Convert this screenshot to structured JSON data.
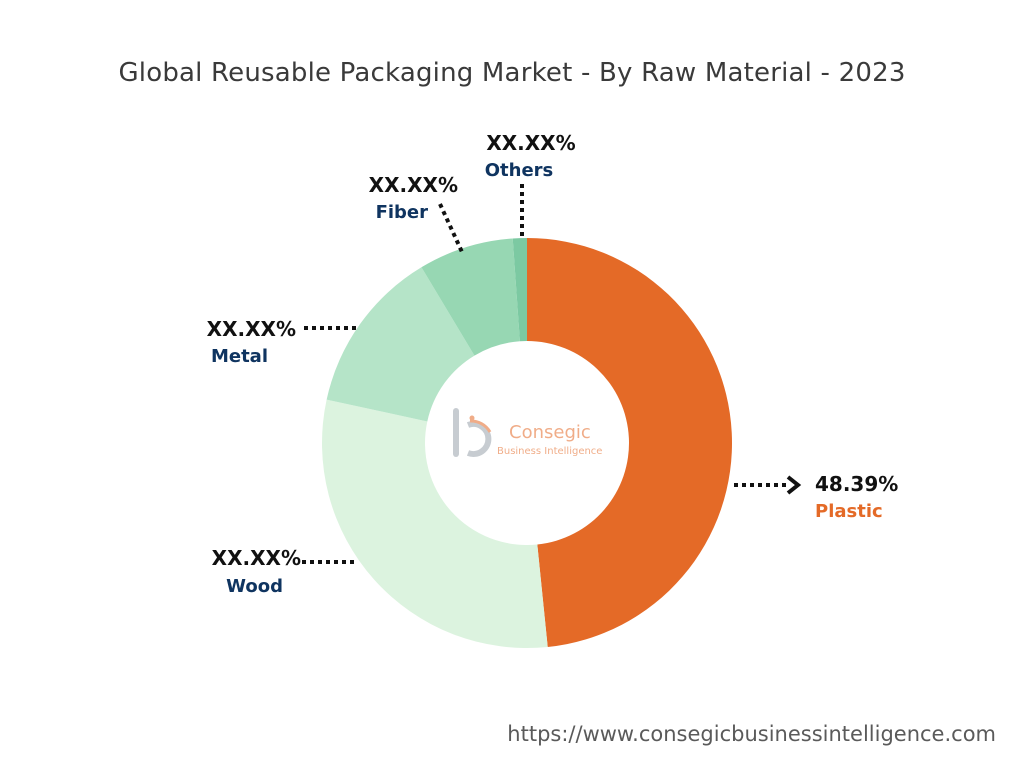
{
  "chart_data": {
    "type": "pie",
    "variant": "donut",
    "title": "Global Reusable Packaging Market - By Raw Material - 2023",
    "categories": [
      "Plastic",
      "Wood",
      "Metal",
      "Fiber",
      "Others"
    ],
    "values": [
      48.39,
      30.0,
      13.0,
      7.5,
      1.11
    ],
    "value_labels": [
      "48.39%",
      "XX.XX%",
      "XX.XX%",
      "XX.XX%",
      "XX.XX%"
    ],
    "colors": [
      "#e46a27",
      "#dcf3df",
      "#b5e4c8",
      "#97d7b3",
      "#7cc9a2"
    ],
    "label_colors": {
      "Plastic": "#e46a27",
      "Wood": "#0f3460",
      "Metal": "#0f3460",
      "Fiber": "#0f3460",
      "Others": "#0f3460"
    }
  },
  "watermark": {
    "brand": "Consegic",
    "tagline": "Business Intelligence"
  },
  "footer": {
    "url": "https://www.consegicbusinessintelligence.com"
  }
}
